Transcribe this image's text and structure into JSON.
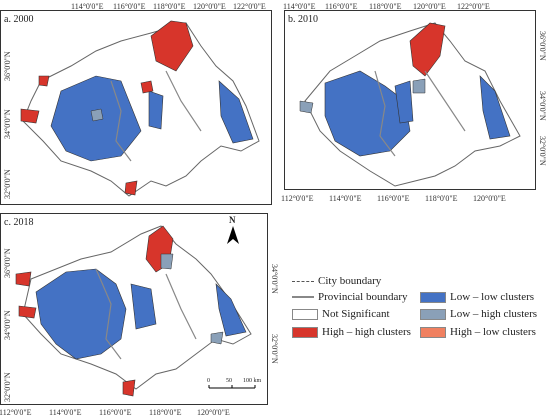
{
  "panels": [
    {
      "label": "a. 2000",
      "top_ticks": [
        "114°0'0\"E",
        "116°0'0\"E",
        "118°0'0\"E",
        "120°0'0\"E",
        "122°0'0\"E"
      ],
      "left_ticks": [
        "36°0'0\"N",
        "34°0'0\"N",
        "32°0'0\"N"
      ]
    },
    {
      "label": "b. 2010",
      "top_ticks": [
        "114°0'0\"E",
        "116°0'0\"E",
        "118°0'0\"E",
        "120°0'0\"E",
        "122°0'0\"E"
      ],
      "bottom_ticks": [
        "112°0'0\"E",
        "114°0'0\"E",
        "116°0'0\"E",
        "118°0'0\"E",
        "120°0'0\"E"
      ],
      "right_ticks": [
        "36°0'0\"N",
        "34°0'0\"N",
        "32°0'0\"N"
      ]
    },
    {
      "label": "c. 2018",
      "bottom_ticks": [
        "112°0'0\"E",
        "114°0'0\"E",
        "116°0'0\"E",
        "118°0'0\"E",
        "120°0'0\"E"
      ],
      "left_ticks": [
        "36°0'0\"N",
        "34°0'0\"N",
        "32°0'0\"N"
      ],
      "right_ticks": [
        "34°0'0\"N",
        "32°0'0\"N"
      ]
    }
  ],
  "north_label": "N",
  "scale": {
    "labels": [
      "0",
      "50",
      "100 km"
    ]
  },
  "legend": {
    "city_boundary": "City boundary",
    "provincial_boundary": "Provincial boundary",
    "not_significant": "Not Significant",
    "high_high": "High – high clusters",
    "low_low": "Low – low clusters",
    "low_high": "Low – high clusters",
    "high_low": "High – low clusters"
  },
  "colors": {
    "high_high": "#d7352b",
    "low_low": "#4472c4",
    "low_high": "#8aa0b8",
    "high_low": "#f08060",
    "not_significant": "#ffffff",
    "boundary": "#888888"
  }
}
